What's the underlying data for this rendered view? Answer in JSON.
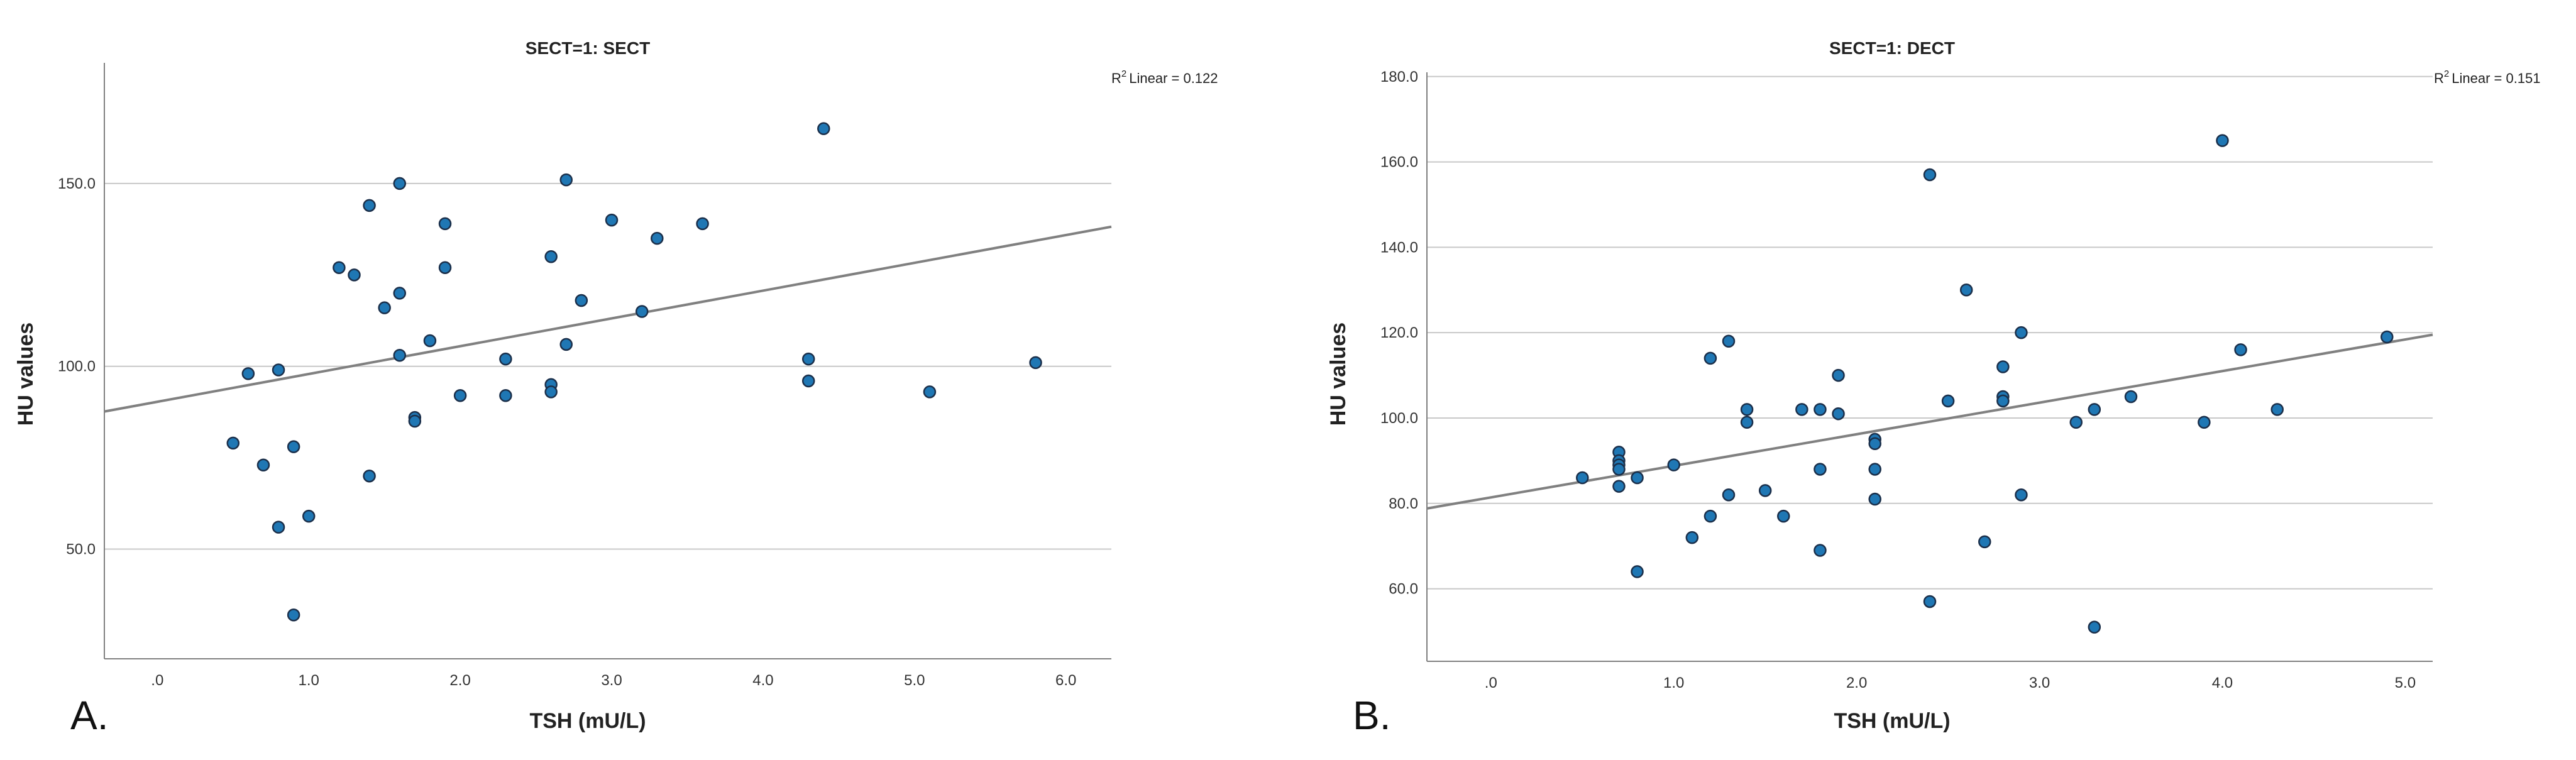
{
  "colors": {
    "point": "#1f77b4",
    "point_stroke": "#1b2f4a",
    "fit": "#808080",
    "grid": "#c8c8c8",
    "axis": "#808080"
  },
  "chart_data": [
    {
      "type": "scatter",
      "panel_label": "A.",
      "title": "SECT=1: SECT",
      "xlabel": "TSH (mU/L)",
      "ylabel": "HU values",
      "xlim": [
        -0.35,
        6.3
      ],
      "ylim": [
        20,
        183
      ],
      "xticks": [
        ".0",
        "1.0",
        "2.0",
        "3.0",
        "4.0",
        "5.0",
        "6.0"
      ],
      "xtick_values": [
        0,
        1,
        2,
        3,
        4,
        5,
        6
      ],
      "yticks": [
        "50.0",
        "100.0",
        "150.0"
      ],
      "ytick_values": [
        50,
        100,
        150
      ],
      "r2_label": "Linear = 0.122",
      "fit_line": {
        "intercept": 90.3,
        "slope": 7.6
      },
      "x": [
        0.5,
        0.6,
        0.7,
        0.8,
        0.8,
        0.9,
        0.9,
        1.0,
        1.2,
        1.3,
        1.4,
        1.4,
        1.5,
        1.6,
        1.6,
        1.6,
        1.7,
        1.7,
        1.8,
        1.9,
        1.9,
        2.0,
        2.3,
        2.3,
        2.6,
        2.6,
        2.6,
        2.7,
        2.7,
        2.8,
        3.0,
        3.2,
        3.3,
        3.6,
        4.3,
        4.3,
        4.4,
        5.1,
        5.8
      ],
      "y": [
        79,
        98,
        73,
        99,
        56,
        78,
        32,
        59,
        127,
        125,
        144,
        70,
        116,
        150,
        120,
        103,
        86,
        85,
        107,
        139,
        127,
        92,
        102,
        92,
        130,
        95,
        93,
        151,
        106,
        118,
        140,
        115,
        135,
        139,
        102,
        96,
        165,
        93,
        101
      ]
    },
    {
      "type": "scatter",
      "panel_label": "B.",
      "title": "SECT=1: DECT",
      "xlabel": "TSH (mU/L)",
      "ylabel": "HU values",
      "xlim": [
        -0.35,
        5.15
      ],
      "ylim": [
        43,
        181
      ],
      "xticks": [
        ".0",
        "1.0",
        "2.0",
        "3.0",
        "4.0",
        "5.0"
      ],
      "xtick_values": [
        0,
        1,
        2,
        3,
        4,
        5
      ],
      "yticks": [
        "60.0",
        "80.0",
        "100.0",
        "120.0",
        "140.0",
        "160.0",
        "180.0"
      ],
      "ytick_values": [
        60,
        80,
        100,
        120,
        140,
        160,
        180
      ],
      "r2_label": "Linear = 0.151",
      "fit_line": {
        "intercept": 81.4,
        "slope": 7.4
      },
      "x": [
        0.5,
        0.7,
        0.7,
        0.7,
        0.7,
        0.7,
        0.8,
        0.8,
        1.0,
        1.1,
        1.2,
        1.2,
        1.3,
        1.3,
        1.4,
        1.4,
        1.5,
        1.6,
        1.7,
        1.8,
        1.8,
        1.8,
        1.9,
        1.9,
        2.1,
        2.1,
        2.1,
        2.1,
        2.4,
        2.4,
        2.5,
        2.6,
        2.7,
        2.8,
        2.8,
        2.8,
        2.9,
        2.9,
        3.2,
        3.3,
        3.3,
        3.5,
        3.9,
        4.0,
        4.1,
        4.3,
        4.9
      ],
      "y": [
        86,
        92,
        90,
        89,
        84,
        88,
        86,
        64,
        89,
        72,
        77,
        114,
        118,
        82,
        102,
        99,
        83,
        77,
        102,
        102,
        88,
        69,
        110,
        101,
        95,
        94,
        88,
        81,
        157,
        57,
        104,
        130,
        71,
        112,
        105,
        104,
        120,
        82,
        99,
        102,
        51,
        105,
        99,
        165,
        116,
        102,
        119
      ]
    }
  ]
}
